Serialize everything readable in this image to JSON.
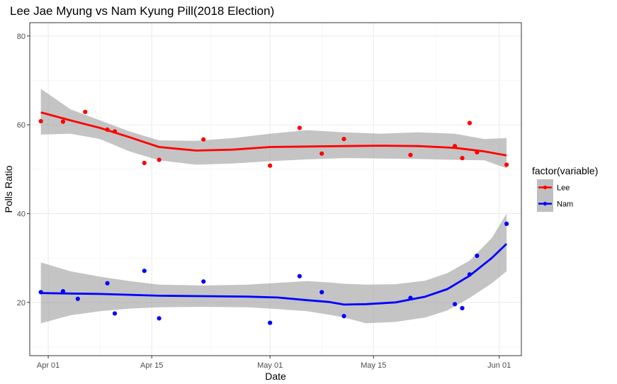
{
  "chart_data": {
    "type": "scatter",
    "title": "Lee Jae Myung vs Nam Kyung Pill(2018 Election)",
    "xlabel": "Date",
    "ylabel": "Polls Ratio",
    "x_ticks": [
      "Apr 01",
      "Apr 15",
      "May 01",
      "May 15",
      "Jun 01"
    ],
    "y_ticks": [
      20,
      40,
      60,
      80
    ],
    "ylim": [
      8,
      83
    ],
    "grid": true,
    "legend": {
      "title": "factor(variable)",
      "placement": "right",
      "entries": [
        "Lee",
        "Nam"
      ]
    },
    "series": [
      {
        "name": "Lee",
        "color": "#ff0000",
        "x": [
          "2018-03-31",
          "2018-04-03",
          "2018-04-06",
          "2018-04-09",
          "2018-04-10",
          "2018-04-14",
          "2018-04-16",
          "2018-04-22",
          "2018-05-01",
          "2018-05-05",
          "2018-05-08",
          "2018-05-11",
          "2018-05-20",
          "2018-05-26",
          "2018-05-27",
          "2018-05-28",
          "2018-05-29",
          "2018-06-02"
        ],
        "values": [
          60.8,
          60.7,
          62.9,
          58.9,
          58.5,
          51.4,
          52.1,
          56.7,
          50.8,
          59.3,
          53.5,
          56.8,
          53.2,
          55.2,
          52.5,
          60.4,
          53.8,
          51.0
        ],
        "smooth": [
          [
            "2018-03-31",
            62.8
          ],
          [
            "2018-04-04",
            61.0
          ],
          [
            "2018-04-08",
            59.3
          ],
          [
            "2018-04-12",
            57.2
          ],
          [
            "2018-04-16",
            55.0
          ],
          [
            "2018-04-21",
            54.2
          ],
          [
            "2018-04-26",
            54.4
          ],
          [
            "2018-05-01",
            55.0
          ],
          [
            "2018-05-06",
            55.1
          ],
          [
            "2018-05-11",
            55.2
          ],
          [
            "2018-05-16",
            55.3
          ],
          [
            "2018-05-21",
            55.2
          ],
          [
            "2018-05-26",
            54.8
          ],
          [
            "2018-05-30",
            54.0
          ],
          [
            "2018-06-02",
            53.1
          ]
        ],
        "band_upper": [
          68.1,
          63.5,
          61.0,
          58.5,
          56.5,
          56.4,
          57.0,
          58.0,
          58.8,
          58.3,
          58.0,
          58.3,
          58.0,
          56.8,
          57.0,
          58.0
        ],
        "band_lower": [
          57.8,
          58.0,
          56.8,
          54.0,
          52.0,
          51.0,
          51.3,
          51.8,
          52.2,
          52.5,
          52.4,
          52.3,
          52.1,
          52.0,
          50.2,
          48.3
        ]
      },
      {
        "name": "Nam",
        "color": "#0000ff",
        "x": [
          "2018-03-31",
          "2018-04-03",
          "2018-04-05",
          "2018-04-09",
          "2018-04-10",
          "2018-04-14",
          "2018-04-16",
          "2018-04-22",
          "2018-05-01",
          "2018-05-05",
          "2018-05-08",
          "2018-05-11",
          "2018-05-20",
          "2018-05-26",
          "2018-05-27",
          "2018-05-28",
          "2018-05-29",
          "2018-06-02"
        ],
        "values": [
          22.3,
          22.5,
          20.8,
          24.3,
          17.5,
          27.1,
          16.4,
          24.7,
          15.4,
          25.9,
          22.3,
          16.9,
          21.0,
          19.6,
          18.7,
          26.3,
          30.5,
          37.7
        ],
        "smooth": [
          [
            "2018-03-31",
            22.1
          ],
          [
            "2018-04-04",
            22.0
          ],
          [
            "2018-04-08",
            21.9
          ],
          [
            "2018-04-12",
            21.7
          ],
          [
            "2018-04-16",
            21.5
          ],
          [
            "2018-04-22",
            21.4
          ],
          [
            "2018-04-28",
            21.3
          ],
          [
            "2018-05-02",
            21.1
          ],
          [
            "2018-05-06",
            20.5
          ],
          [
            "2018-05-09",
            20.1
          ],
          [
            "2018-05-11",
            19.5
          ],
          [
            "2018-05-14",
            19.6
          ],
          [
            "2018-05-18",
            20.0
          ],
          [
            "2018-05-22",
            21.3
          ],
          [
            "2018-05-25",
            23.0
          ],
          [
            "2018-05-28",
            26.0
          ],
          [
            "2018-05-31",
            30.0
          ],
          [
            "2018-06-02",
            33.2
          ]
        ],
        "band_upper": [
          29.0,
          27.0,
          25.8,
          24.8,
          24.0,
          23.8,
          24.0,
          24.4,
          24.8,
          24.5,
          24.2,
          24.0,
          24.1,
          24.9,
          26.6,
          29.4,
          34.5,
          40.0
        ],
        "band_lower": [
          15.3,
          17.1,
          18.0,
          18.6,
          18.9,
          19.0,
          18.9,
          18.5,
          18.0,
          17.2,
          16.6,
          15.3,
          15.6,
          16.6,
          18.2,
          21.0,
          24.3,
          27.0
        ]
      }
    ]
  }
}
